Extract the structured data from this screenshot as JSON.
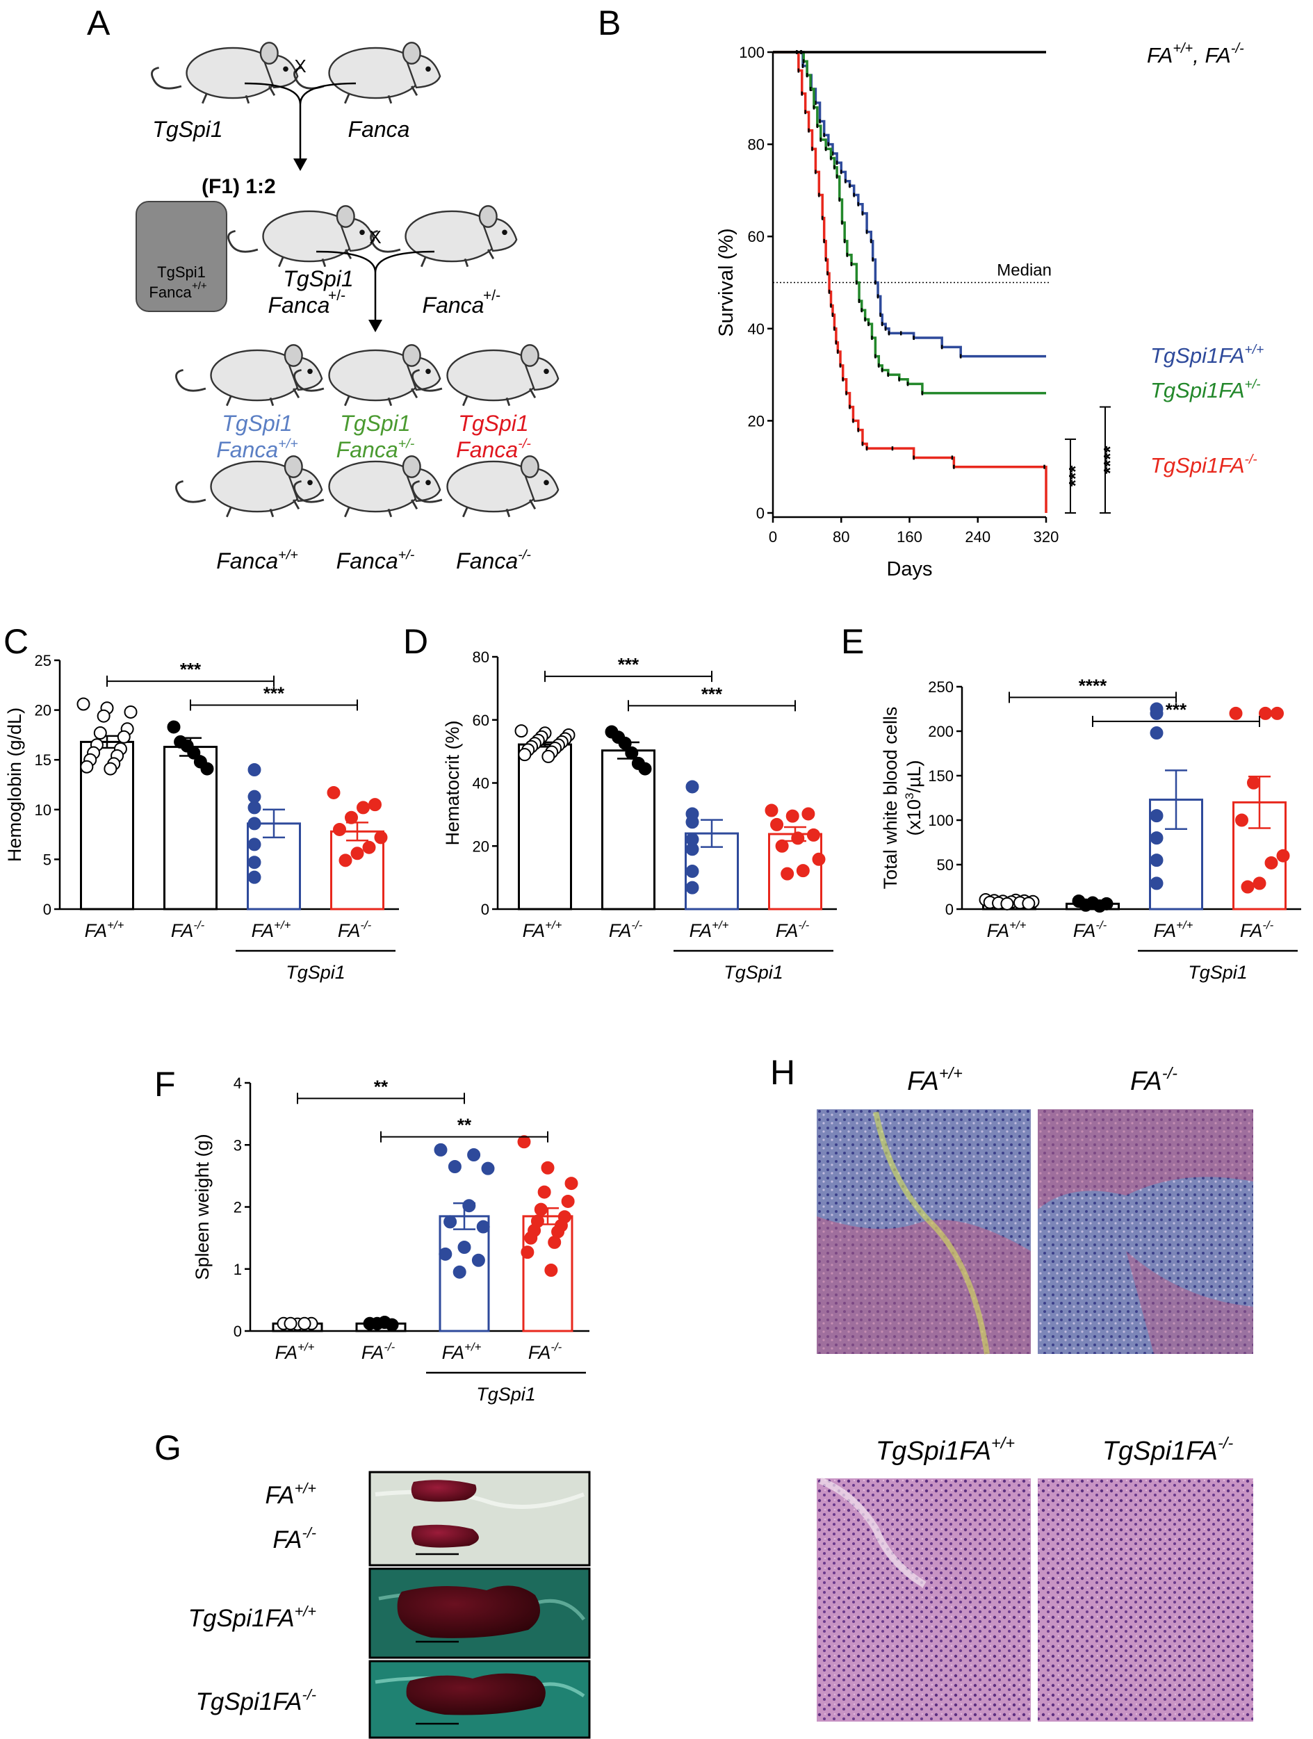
{
  "panel_labels": [
    "A",
    "B",
    "C",
    "D",
    "E",
    "F",
    "G",
    "H"
  ],
  "colors": {
    "wt_black": "#000000",
    "blue": "#2e4a9b",
    "green": "#23882b",
    "red": "#e8281d",
    "label_blue": "#5b7fc4",
    "label_green": "#4a9a30",
    "label_red": "#e0161e"
  },
  "panel_a": {
    "cross_symbol": "X",
    "parent_left": "TgSpi1",
    "parent_right": "Fanca",
    "f1_label": "(F1) 1:2",
    "box_line1": "TgSpi1",
    "box_line2_base": "Fanca",
    "box_line2_sup": "+/+",
    "mid_left_line1": "TgSpi1",
    "mid_left_line2_base": "Fanca",
    "mid_left_line2_sup": "+/-",
    "mid_right_base": "Fanca",
    "mid_right_sup": "+/-",
    "offspring": [
      {
        "line1": "TgSpi1",
        "base": "Fanca",
        "sup": "+/+"
      },
      {
        "line1": "TgSpi1",
        "base": "Fanca",
        "sup": "+/-"
      },
      {
        "line1": "TgSpi1",
        "base": "Fanca",
        "sup": "-/-"
      },
      {
        "line1": "",
        "base": "Fanca",
        "sup": "+/+"
      },
      {
        "line1": "",
        "base": "Fanca",
        "sup": "+/-"
      },
      {
        "line1": "",
        "base": "Fanca",
        "sup": "-/-"
      }
    ]
  },
  "panel_b": {
    "chart_data": {
      "type": "line",
      "xlabel": "Days",
      "ylabel": "Survival (%)",
      "xlim": [
        0,
        320
      ],
      "ylim": [
        0,
        100
      ],
      "xticks": [
        0,
        80,
        160,
        240,
        320
      ],
      "yticks": [
        0,
        20,
        40,
        60,
        80,
        100
      ],
      "median_label": "Median",
      "median_value": 50,
      "series": [
        {
          "name_base": "FA",
          "name_sup": "+/+",
          "name_sep": ", ",
          "name2_base": "FA",
          "name2_sup": "-/-",
          "color": "#000000",
          "points": [
            [
              0,
              100
            ],
            [
              320,
              100
            ]
          ]
        },
        {
          "name_base": "TgSpi1FA",
          "name_sup": "+/+",
          "color": "#2e4a9b",
          "points": [
            [
              0,
              100
            ],
            [
              33,
              100
            ],
            [
              35,
              97
            ],
            [
              40,
              95
            ],
            [
              45,
              92
            ],
            [
              50,
              89
            ],
            [
              55,
              85
            ],
            [
              60,
              82
            ],
            [
              65,
              80
            ],
            [
              70,
              78
            ],
            [
              75,
              76
            ],
            [
              80,
              74
            ],
            [
              85,
              72
            ],
            [
              90,
              71
            ],
            [
              95,
              69
            ],
            [
              100,
              67
            ],
            [
              105,
              65
            ],
            [
              110,
              61
            ],
            [
              115,
              59
            ],
            [
              117,
              55
            ],
            [
              120,
              50
            ],
            [
              123,
              47
            ],
            [
              126,
              43
            ],
            [
              128,
              41
            ],
            [
              132,
              40
            ],
            [
              136,
              39
            ],
            [
              150,
              39
            ],
            [
              165,
              38
            ],
            [
              198,
              36
            ],
            [
              220,
              34
            ],
            [
              320,
              34
            ]
          ]
        },
        {
          "name_base": "TgSpi1FA",
          "name_sup": "+/-",
          "color": "#23882b",
          "points": [
            [
              0,
              100
            ],
            [
              33,
              100
            ],
            [
              36,
              98
            ],
            [
              40,
              95
            ],
            [
              44,
              92
            ],
            [
              48,
              88
            ],
            [
              52,
              84
            ],
            [
              56,
              81
            ],
            [
              62,
              79
            ],
            [
              68,
              77
            ],
            [
              72,
              75
            ],
            [
              75,
              73
            ],
            [
              78,
              68
            ],
            [
              81,
              63
            ],
            [
              84,
              59
            ],
            [
              87,
              56
            ],
            [
              92,
              54
            ],
            [
              98,
              50
            ],
            [
              101,
              46
            ],
            [
              104,
              44
            ],
            [
              108,
              42
            ],
            [
              112,
              41
            ],
            [
              116,
              38
            ],
            [
              120,
              34
            ],
            [
              124,
              32
            ],
            [
              128,
              31
            ],
            [
              135,
              30
            ],
            [
              148,
              29
            ],
            [
              158,
              28
            ],
            [
              175,
              26
            ],
            [
              320,
              26
            ]
          ]
        },
        {
          "name_base": "TgSpi1FA",
          "name_sup": "-/-",
          "color": "#e8281d",
          "points": [
            [
              0,
              100
            ],
            [
              28,
              100
            ],
            [
              30,
              96
            ],
            [
              34,
              91
            ],
            [
              38,
              87
            ],
            [
              42,
              83
            ],
            [
              46,
              79
            ],
            [
              50,
              74
            ],
            [
              54,
              69
            ],
            [
              58,
              64
            ],
            [
              60,
              59
            ],
            [
              62,
              55
            ],
            [
              64,
              52
            ],
            [
              66,
              48
            ],
            [
              68,
              45
            ],
            [
              70,
              43
            ],
            [
              72,
              40
            ],
            [
              74,
              37
            ],
            [
              76,
              35
            ],
            [
              79,
              32
            ],
            [
              82,
              29
            ],
            [
              86,
              26
            ],
            [
              90,
              23
            ],
            [
              94,
              20
            ],
            [
              100,
              18
            ],
            [
              105,
              15
            ],
            [
              110,
              14
            ],
            [
              140,
              14
            ],
            [
              165,
              12
            ],
            [
              210,
              12
            ],
            [
              212,
              10
            ],
            [
              318,
              10
            ],
            [
              320,
              0
            ]
          ]
        }
      ],
      "sig_brackets": [
        {
          "label": "***",
          "from": 0,
          "to": 16
        },
        {
          "label": "****",
          "from": 0,
          "to": 23
        }
      ]
    }
  },
  "bar_panels": [
    {
      "id": "C",
      "chart_data": {
        "type": "bar",
        "ylabel": "Hemoglobin (g/dL)",
        "ylim": [
          0,
          25
        ],
        "yticks": [
          0,
          5,
          10,
          15,
          20,
          25
        ],
        "categories": [
          {
            "base": "FA",
            "sup": "+/+"
          },
          {
            "base": "FA",
            "sup": "-/-"
          },
          {
            "base": "FA",
            "sup": "+/+"
          },
          {
            "base": "FA",
            "sup": "-/-"
          }
        ],
        "values": [
          16.8,
          16.3,
          8.6,
          7.8
        ],
        "sem": [
          0.6,
          0.9,
          1.4,
          0.9
        ],
        "bar_colors": [
          "#000000",
          "#000000",
          "#2e4a9b",
          "#e8281d"
        ],
        "point_fill": [
          "#ffffff",
          "#000000",
          "#2e4a9b",
          "#e8281d"
        ],
        "points": [
          [
            20.6,
            20.2,
            19.8,
            19.4,
            18.1,
            17.7,
            17.3,
            16.5,
            16.1,
            15.7,
            15.4,
            15.0,
            14.6,
            14.3,
            14.1
          ],
          [
            18.3,
            16.8,
            16.4,
            15.7,
            14.8,
            14.1
          ],
          [
            14.0,
            11.3,
            10.2,
            8.6,
            6.5,
            4.7,
            3.2
          ],
          [
            11.7,
            10.5,
            10.2,
            9.2,
            8.0,
            7.2,
            6.2,
            5.6,
            4.9
          ]
        ],
        "group_label": "TgSpi1",
        "sig_brackets": [
          {
            "label": "***",
            "from": 0,
            "to": 2,
            "y": 22.9
          },
          {
            "label": "***",
            "from": 1,
            "to": 3,
            "y": 20.5
          }
        ]
      }
    },
    {
      "id": "D",
      "chart_data": {
        "type": "bar",
        "ylabel": "Hematocrit (%)",
        "ylim": [
          0,
          80
        ],
        "yticks": [
          0,
          20,
          40,
          60,
          80
        ],
        "categories": [
          {
            "base": "FA",
            "sup": "+/+"
          },
          {
            "base": "FA",
            "sup": "-/-"
          },
          {
            "base": "FA",
            "sup": "+/+"
          },
          {
            "base": "FA",
            "sup": "-/-"
          }
        ],
        "values": [
          52.2,
          50.3,
          24.0,
          23.8
        ],
        "sem": [
          0.7,
          2.6,
          4.3,
          2.2
        ],
        "bar_colors": [
          "#000000",
          "#000000",
          "#2e4a9b",
          "#e8281d"
        ],
        "point_fill": [
          "#ffffff",
          "#000000",
          "#2e4a9b",
          "#e8281d"
        ],
        "points": [
          [
            56.5,
            55.8,
            55.2,
            54.6,
            54.0,
            53.5,
            53.0,
            52.5,
            52.0,
            51.5,
            51.0,
            50.5,
            49.8,
            49.0,
            48.4
          ],
          [
            56.2,
            54.5,
            52.6,
            49.5,
            46.2,
            44.5
          ],
          [
            38.8,
            30.2,
            27.6,
            22.1,
            19.0,
            12.0,
            6.8
          ],
          [
            31.3,
            30.2,
            29.5,
            26.8,
            23.5,
            22.5,
            20.0,
            15.8,
            12.2,
            11.2
          ]
        ],
        "group_label": "TgSpi1",
        "sig_brackets": [
          {
            "label": "***",
            "from": 0,
            "to": 2,
            "y": 73.8
          },
          {
            "label": "***",
            "from": 1,
            "to": 3,
            "y": 64.5
          }
        ]
      }
    },
    {
      "id": "E",
      "chart_data": {
        "type": "bar",
        "ylabel_line1": "Total white blood cells",
        "ylabel_line2_pre": "(x10",
        "ylabel_line2_sup": "3",
        "ylabel_line2_post": "/µL)",
        "ylim": [
          0,
          250
        ],
        "yticks": [
          0,
          50,
          100,
          150,
          200,
          250
        ],
        "categories": [
          {
            "base": "FA",
            "sup": "+/+"
          },
          {
            "base": "FA",
            "sup": "-/-"
          },
          {
            "base": "FA",
            "sup": "+/+"
          },
          {
            "base": "FA",
            "sup": "-/-"
          }
        ],
        "values": [
          8.2,
          6.0,
          123.0,
          120.0
        ],
        "sem": [
          1.2,
          1.0,
          33.0,
          29.0
        ],
        "bar_colors": [
          "#000000",
          "#000000",
          "#2e4a9b",
          "#e8281d"
        ],
        "point_fill": [
          "#ffffff",
          "#000000",
          "#2e4a9b",
          "#e8281d"
        ],
        "points": [
          [
            10.5,
            10.0,
            9.6,
            9.2,
            8.8,
            8.4,
            8.0,
            7.6,
            7.2,
            6.8,
            6.4,
            6.0
          ],
          [
            9.0,
            7.0,
            6.0,
            4.5,
            3.5
          ],
          [
            225,
            220,
            198,
            105,
            80,
            55,
            29
          ],
          [
            220,
            220,
            220,
            142,
            100,
            60,
            52,
            29,
            25
          ]
        ],
        "group_label": "TgSpi1",
        "sig_brackets": [
          {
            "label": "****",
            "from": 0,
            "to": 2,
            "y": 238
          },
          {
            "label": "***",
            "from": 1,
            "to": 3,
            "y": 211
          }
        ]
      }
    },
    {
      "id": "F",
      "chart_data": {
        "type": "bar",
        "ylabel": "Spleen weight (g)",
        "ylim": [
          0,
          4
        ],
        "yticks": [
          0,
          1,
          2,
          3,
          4
        ],
        "categories": [
          {
            "base": "FA",
            "sup": "+/+"
          },
          {
            "base": "FA",
            "sup": "-/-"
          },
          {
            "base": "FA",
            "sup": "+/+"
          },
          {
            "base": "FA",
            "sup": "-/-"
          }
        ],
        "values": [
          0.12,
          0.12,
          1.85,
          1.85
        ],
        "sem": [
          0.02,
          0.02,
          0.21,
          0.13
        ],
        "bar_colors": [
          "#000000",
          "#000000",
          "#2e4a9b",
          "#e8281d"
        ],
        "point_fill": [
          "#ffffff",
          "#000000",
          "#2e4a9b",
          "#e8281d"
        ],
        "points": [
          [
            0.12,
            0.11,
            0.12,
            0.12,
            0.12
          ],
          [
            0.12,
            0.1,
            0.14,
            0.12
          ],
          [
            2.92,
            2.84,
            2.65,
            2.62,
            2.02,
            1.76,
            1.68,
            1.35,
            1.24,
            1.14,
            0.95
          ],
          [
            3.05,
            2.63,
            2.38,
            2.24,
            2.09,
            1.96,
            1.84,
            1.77,
            1.7,
            1.62,
            1.6,
            1.5,
            1.43,
            1.27,
            0.98
          ]
        ],
        "group_label": "TgSpi1",
        "sig_brackets": [
          {
            "label": "**",
            "from": 0,
            "to": 2,
            "y": 3.75
          },
          {
            "label": "**",
            "from": 1,
            "to": 3,
            "y": 3.13
          }
        ]
      }
    }
  ],
  "panel_g": {
    "labels": [
      {
        "base": "FA",
        "sup": "+/+"
      },
      {
        "base": "FA",
        "sup": "-/-"
      },
      {
        "base": "TgSpi1FA",
        "sup": "+/+"
      },
      {
        "base": "TgSpi1FA",
        "sup": "-/-"
      }
    ]
  },
  "panel_h": {
    "labels": [
      {
        "base": "FA",
        "sup": "+/+"
      },
      {
        "base": "FA",
        "sup": "-/-"
      },
      {
        "base": "TgSpi1FA",
        "sup": "+/+"
      },
      {
        "base": "TgSpi1FA",
        "sup": "-/-"
      }
    ]
  }
}
